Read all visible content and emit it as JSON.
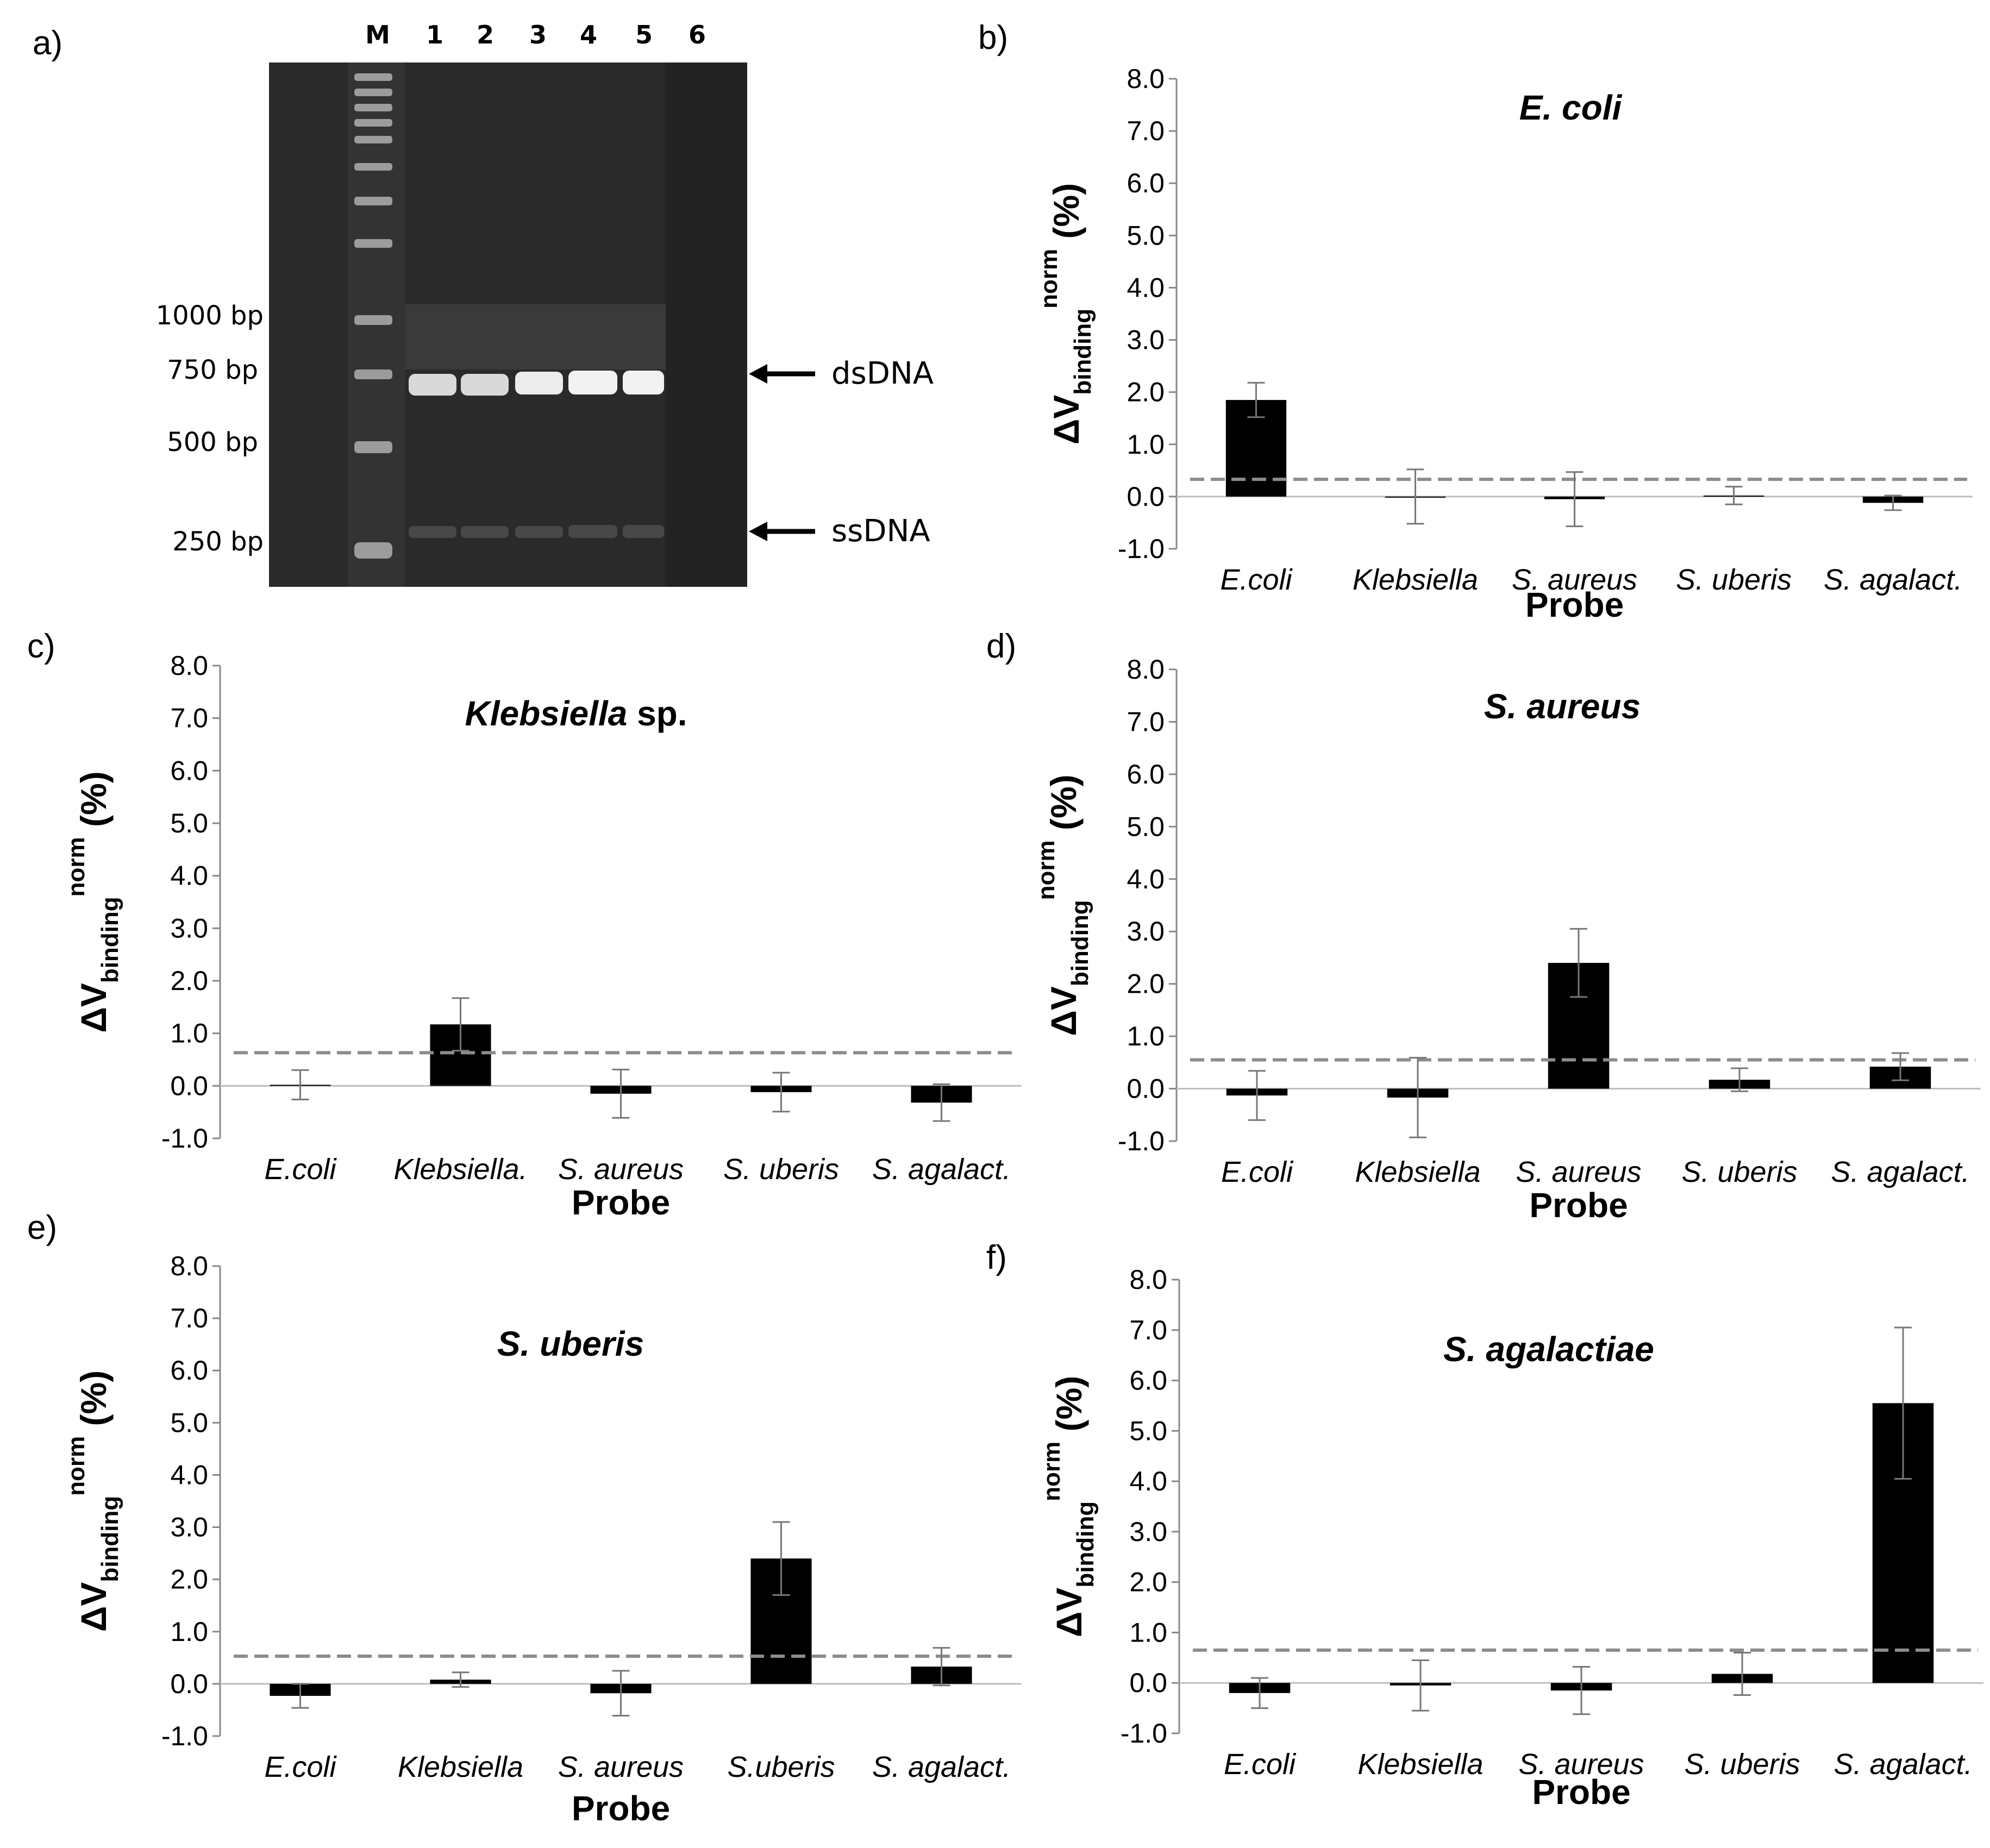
{
  "gel": {
    "panel_label": "a)",
    "lanes": [
      "M",
      "1",
      "2",
      "3",
      "4",
      "5",
      "6"
    ],
    "ladder": [
      "1000 bp",
      "750 bp",
      "500 bp",
      "250 bp"
    ],
    "arrows": [
      "dsDNA",
      "ssDNA"
    ]
  },
  "chart_data": [
    {
      "type": "bar",
      "panel": "b)",
      "title": "E. coli",
      "title_tail": "",
      "categories": [
        "E.coli",
        "Klebsiella",
        "S. aureus",
        "S. uberis",
        "S. agalact."
      ],
      "values": [
        1.85,
        0.0,
        -0.05,
        0.02,
        -0.12
      ],
      "errors": [
        0.33,
        0.52,
        0.52,
        0.17,
        0.14
      ],
      "threshold": 0.33,
      "xlabel": "Probe",
      "ylabel_main": "ΔV",
      "ylabel_sub": "binding",
      "ylabel_sup": "norm",
      "ylabel_tail": " (%)",
      "ylim": [
        -1.0,
        8.0
      ],
      "yticks": [
        "8.0",
        "7.0",
        "6.0",
        "5.0",
        "4.0",
        "3.0",
        "2.0",
        "1.0",
        "0.0",
        "-1.0"
      ],
      "grid": false
    },
    {
      "type": "bar",
      "panel": "c)",
      "title": "Klebsiella",
      "title_tail": " sp.",
      "categories": [
        "E.coli",
        "Klebsiella.",
        "S. aureus",
        "S. uberis",
        "S. agalact."
      ],
      "values": [
        0.02,
        1.17,
        -0.15,
        -0.12,
        -0.32
      ],
      "errors": [
        0.28,
        0.5,
        0.46,
        0.37,
        0.35
      ],
      "threshold": 0.63,
      "xlabel": "Probe",
      "ylabel_main": "ΔV",
      "ylabel_sub": "binding",
      "ylabel_sup": "norm",
      "ylabel_tail": " (%)",
      "ylim": [
        -1.0,
        8.0
      ],
      "yticks": [
        "8.0",
        "7.0",
        "6.0",
        "5.0",
        "4.0",
        "3.0",
        "2.0",
        "1.0",
        "0.0",
        "-1.0"
      ],
      "grid": false
    },
    {
      "type": "bar",
      "panel": "d)",
      "title": "S. aureus",
      "title_tail": "",
      "categories": [
        "E.coli",
        "Klebsiella",
        "S. aureus",
        "S. uberis",
        "S. agalact."
      ],
      "values": [
        -0.13,
        -0.17,
        2.4,
        0.17,
        0.42
      ],
      "errors": [
        0.47,
        0.76,
        0.65,
        0.22,
        0.26
      ],
      "threshold": 0.55,
      "xlabel": "Probe",
      "ylabel_main": "ΔV",
      "ylabel_sub": "binding",
      "ylabel_sup": "norm",
      "ylabel_tail": " (%)",
      "ylim": [
        -1.0,
        8.0
      ],
      "yticks": [
        "8.0",
        "7.0",
        "6.0",
        "5.0",
        "4.0",
        "3.0",
        "2.0",
        "1.0",
        "0.0",
        "-1.0"
      ],
      "grid": false
    },
    {
      "type": "bar",
      "panel": "e)",
      "title": "S. uberis",
      "title_tail": "",
      "categories": [
        "E.coli",
        "Klebsiella",
        "S. aureus",
        "S.uberis",
        "S. agalact."
      ],
      "values": [
        -0.23,
        0.08,
        -0.18,
        2.4,
        0.33
      ],
      "errors": [
        0.23,
        0.14,
        0.43,
        0.7,
        0.36
      ],
      "threshold": 0.53,
      "xlabel": "Probe",
      "ylabel_main": "ΔV",
      "ylabel_sub": "binding",
      "ylabel_sup": "norm",
      "ylabel_tail": " (%)",
      "ylim": [
        -1.0,
        8.0
      ],
      "yticks": [
        "8.0",
        "7.0",
        "6.0",
        "5.0",
        "4.0",
        "3.0",
        "2.0",
        "1.0",
        "0.0",
        "-1.0"
      ],
      "grid": false
    },
    {
      "type": "bar",
      "panel": "f)",
      "title": "S. agalactiae",
      "title_tail": "",
      "categories": [
        "E.coli",
        "Klebsiella",
        "S. aureus",
        "S. uberis",
        "S. agalact."
      ],
      "values": [
        -0.2,
        -0.05,
        -0.15,
        0.18,
        5.55
      ],
      "errors": [
        0.3,
        0.5,
        0.47,
        0.42,
        1.5
      ],
      "threshold": 0.65,
      "xlabel": "Probe",
      "ylabel_main": "ΔV",
      "ylabel_sub": "binding",
      "ylabel_sup": "norm",
      "ylabel_tail": " (%)",
      "ylim": [
        -1.0,
        8.0
      ],
      "yticks": [
        "8.0",
        "7.0",
        "6.0",
        "5.0",
        "4.0",
        "3.0",
        "2.0",
        "1.0",
        "0.0",
        "-1.0"
      ],
      "grid": false
    }
  ]
}
